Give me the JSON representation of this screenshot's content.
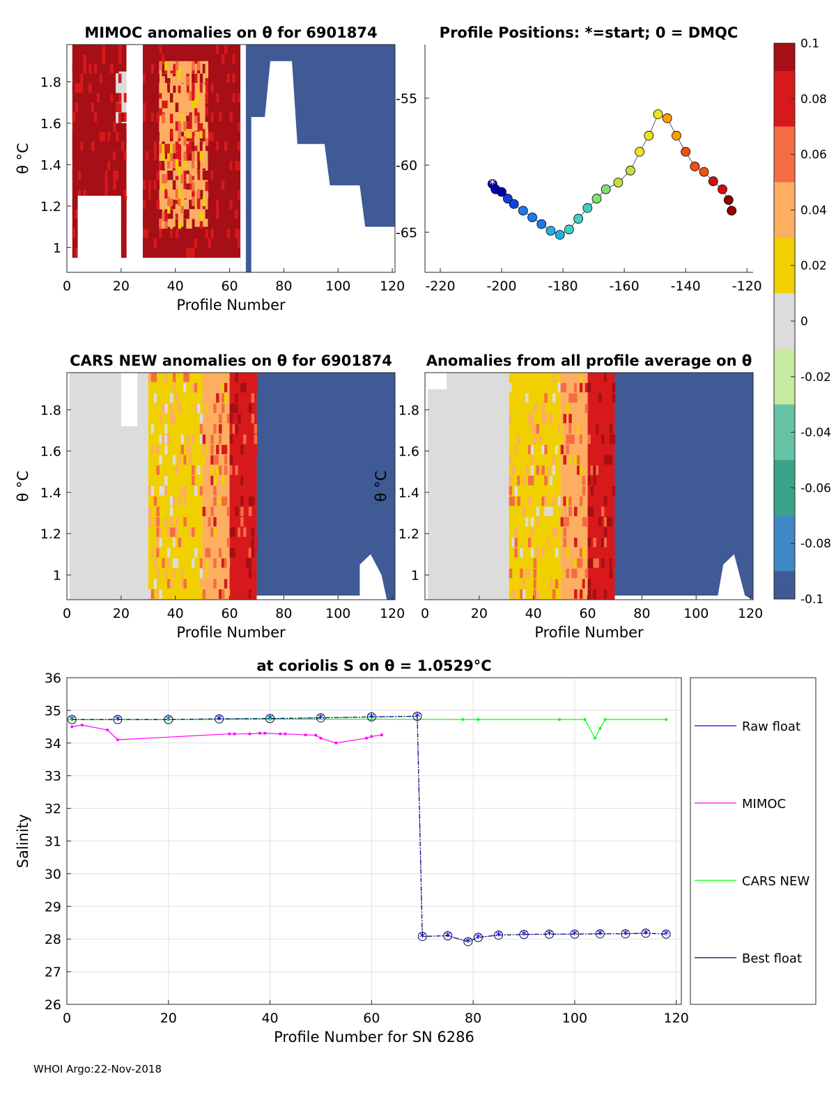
{
  "figure": {
    "footer": "WHOI Argo:22-Nov-2018"
  },
  "colorbar": {
    "ticks": [
      "0.1",
      "0.08",
      "0.06",
      "0.04",
      "0.02",
      "0",
      "-0.02",
      "-0.04",
      "-0.06",
      "-0.08",
      "-0.1"
    ],
    "colors": [
      "#a50f15",
      "#d7191c",
      "#f46d43",
      "#fdae61",
      "#f0d000",
      "#dcdcdc",
      "#c7e9a0",
      "#66c2a5",
      "#3ba38a",
      "#3f88c5",
      "#3f5a94"
    ]
  },
  "chart_data": [
    {
      "id": "mimoc",
      "type": "heatmap",
      "title": "MIMOC anomalies on θ  for 6901874",
      "xlabel": "Profile Number",
      "ylabel": "θ °C",
      "xlim": [
        0,
        121
      ],
      "ylim": [
        0.88,
        1.98
      ],
      "xticks": [
        "0",
        "20",
        "40",
        "60",
        "80",
        "100",
        "120"
      ],
      "yticks": [
        "1",
        "1.2",
        "1.4",
        "1.6",
        "1.8"
      ],
      "regions": [
        {
          "x0": 2,
          "x1": 22,
          "y0": 0.95,
          "y1": 1.98,
          "value": 0.1
        },
        {
          "x0": 28,
          "x1": 64,
          "y0": 0.95,
          "y1": 1.98,
          "value": 0.1
        },
        {
          "x0": 34,
          "x1": 52,
          "y0": 1.1,
          "y1": 1.9,
          "value": 0.05
        },
        {
          "x0": 18,
          "x1": 26,
          "y0": 1.6,
          "y1": 1.85,
          "value": 0.0
        },
        {
          "x0": 64,
          "x1": 121,
          "y0": 0.88,
          "y1": 1.98,
          "value": -0.1
        }
      ]
    },
    {
      "id": "positions",
      "type": "scatter",
      "title": "Profile Positions: *=start; 0 = DMQC",
      "xlim": [
        -225,
        -118
      ],
      "ylim": [
        -68,
        -51
      ],
      "xticks": [
        "-220",
        "-200",
        "-180",
        "-160",
        "-140",
        "-120"
      ],
      "yticks": [
        "-55",
        "-60",
        "-65"
      ],
      "points": [
        [
          -203,
          -61.4
        ],
        [
          -202,
          -61.8
        ],
        [
          -200,
          -62
        ],
        [
          -198,
          -62.5
        ],
        [
          -196,
          -62.9
        ],
        [
          -193,
          -63.4
        ],
        [
          -190,
          -63.9
        ],
        [
          -187,
          -64.4
        ],
        [
          -184,
          -64.9
        ],
        [
          -181,
          -65.2
        ],
        [
          -178,
          -64.8
        ],
        [
          -175,
          -64
        ],
        [
          -172,
          -63.2
        ],
        [
          -169,
          -62.5
        ],
        [
          -166,
          -61.8
        ],
        [
          -162,
          -61.3
        ],
        [
          -158,
          -60.4
        ],
        [
          -155,
          -59
        ],
        [
          -152,
          -57.8
        ],
        [
          -149,
          -56.2
        ],
        [
          -146,
          -56.5
        ],
        [
          -143,
          -57.8
        ],
        [
          -140,
          -59
        ],
        [
          -137,
          -60.1
        ],
        [
          -134,
          -60.5
        ],
        [
          -131,
          -61.2
        ],
        [
          -128,
          -61.8
        ],
        [
          -126,
          -62.6
        ],
        [
          -125,
          -63.4
        ]
      ]
    },
    {
      "id": "cars",
      "type": "heatmap",
      "title": "CARS NEW anomalies on θ for 6901874",
      "xlabel": "Profile Number",
      "ylabel": "θ °C",
      "xlim": [
        0,
        121
      ],
      "ylim": [
        0.88,
        1.98
      ],
      "xticks": [
        "0",
        "20",
        "40",
        "60",
        "80",
        "100",
        "120"
      ],
      "yticks": [
        "1",
        "1.2",
        "1.4",
        "1.6",
        "1.8"
      ],
      "regions": [
        {
          "x0": 1,
          "x1": 30,
          "y0": 0.88,
          "y1": 1.98,
          "value": 0.0
        },
        {
          "x0": 30,
          "x1": 50,
          "y0": 0.88,
          "y1": 1.98,
          "value": 0.03
        },
        {
          "x0": 50,
          "x1": 60,
          "y0": 0.88,
          "y1": 1.98,
          "value": 0.05
        },
        {
          "x0": 60,
          "x1": 70,
          "y0": 0.88,
          "y1": 1.98,
          "value": 0.09
        },
        {
          "x0": 70,
          "x1": 121,
          "y0": 0.88,
          "y1": 1.98,
          "value": -0.1
        }
      ]
    },
    {
      "id": "avg",
      "type": "heatmap",
      "title": "Anomalies from all profile average on θ",
      "xlabel": "Profile Number",
      "ylabel": "θ °C",
      "xlim": [
        0,
        121
      ],
      "ylim": [
        0.88,
        1.98
      ],
      "xticks": [
        "0",
        "20",
        "40",
        "60",
        "80",
        "100",
        "120"
      ],
      "yticks": [
        "1",
        "1.2",
        "1.4",
        "1.6",
        "1.8"
      ],
      "regions": [
        {
          "x0": 1,
          "x1": 31,
          "y0": 0.88,
          "y1": 1.98,
          "value": 0.0
        },
        {
          "x0": 31,
          "x1": 50,
          "y0": 0.88,
          "y1": 1.98,
          "value": 0.03
        },
        {
          "x0": 50,
          "x1": 60,
          "y0": 0.88,
          "y1": 1.98,
          "value": 0.05
        },
        {
          "x0": 60,
          "x1": 70,
          "y0": 0.88,
          "y1": 1.98,
          "value": 0.09
        },
        {
          "x0": 70,
          "x1": 121,
          "y0": 0.88,
          "y1": 1.98,
          "value": -0.1
        }
      ]
    },
    {
      "id": "salinity",
      "type": "line",
      "title": "at coriolis S on θ = 1.0529°C",
      "xlabel": "Profile Number for SN 6286",
      "ylabel": "Salinity",
      "xlim": [
        0,
        121
      ],
      "ylim": [
        26,
        36
      ],
      "xticks": [
        "0",
        "20",
        "40",
        "60",
        "80",
        "100",
        "120"
      ],
      "yticks": [
        "26",
        "27",
        "28",
        "29",
        "30",
        "31",
        "32",
        "33",
        "34",
        "35",
        "36"
      ],
      "series": [
        {
          "name": "Raw float",
          "color": "#0000ff",
          "x": [
            1,
            10,
            20,
            30,
            40,
            50,
            60,
            69,
            70,
            75,
            79,
            81,
            85,
            90,
            95,
            100,
            105,
            110,
            114,
            118
          ],
          "y": [
            34.72,
            34.72,
            34.72,
            34.74,
            34.75,
            34.77,
            34.8,
            34.82,
            28.08,
            28.1,
            27.92,
            28.05,
            28.12,
            28.14,
            28.15,
            28.15,
            28.16,
            28.16,
            28.18,
            28.15
          ]
        },
        {
          "name": "MIMOC",
          "color": "#ff00ff",
          "x": [
            1,
            3,
            8,
            10,
            32,
            33,
            36,
            38,
            39,
            42,
            43,
            47,
            49,
            50,
            53,
            59,
            60,
            62
          ],
          "y": [
            34.5,
            34.55,
            34.4,
            34.1,
            34.28,
            34.28,
            34.28,
            34.3,
            34.3,
            34.28,
            34.28,
            34.25,
            34.24,
            34.15,
            34.0,
            34.15,
            34.2,
            34.25
          ]
        },
        {
          "name": "CARS NEW",
          "color": "#00ff00",
          "x": [
            1,
            20,
            40,
            60,
            78,
            81,
            97,
            102,
            104,
            105,
            106,
            118
          ],
          "y": [
            34.72,
            34.72,
            34.73,
            34.73,
            34.72,
            34.72,
            34.72,
            34.72,
            34.15,
            34.45,
            34.72,
            34.72
          ]
        },
        {
          "name": "Best float",
          "color": "#000044",
          "x": [
            1,
            10,
            20,
            30,
            40,
            50,
            60,
            69,
            70,
            75,
            79,
            81,
            85,
            90,
            95,
            100,
            105,
            110,
            114,
            118
          ],
          "y": [
            34.72,
            34.72,
            34.72,
            34.74,
            34.75,
            34.77,
            34.8,
            34.82,
            28.08,
            28.1,
            27.92,
            28.05,
            28.12,
            28.14,
            28.15,
            28.15,
            28.16,
            28.16,
            28.18,
            28.15
          ]
        }
      ]
    }
  ]
}
